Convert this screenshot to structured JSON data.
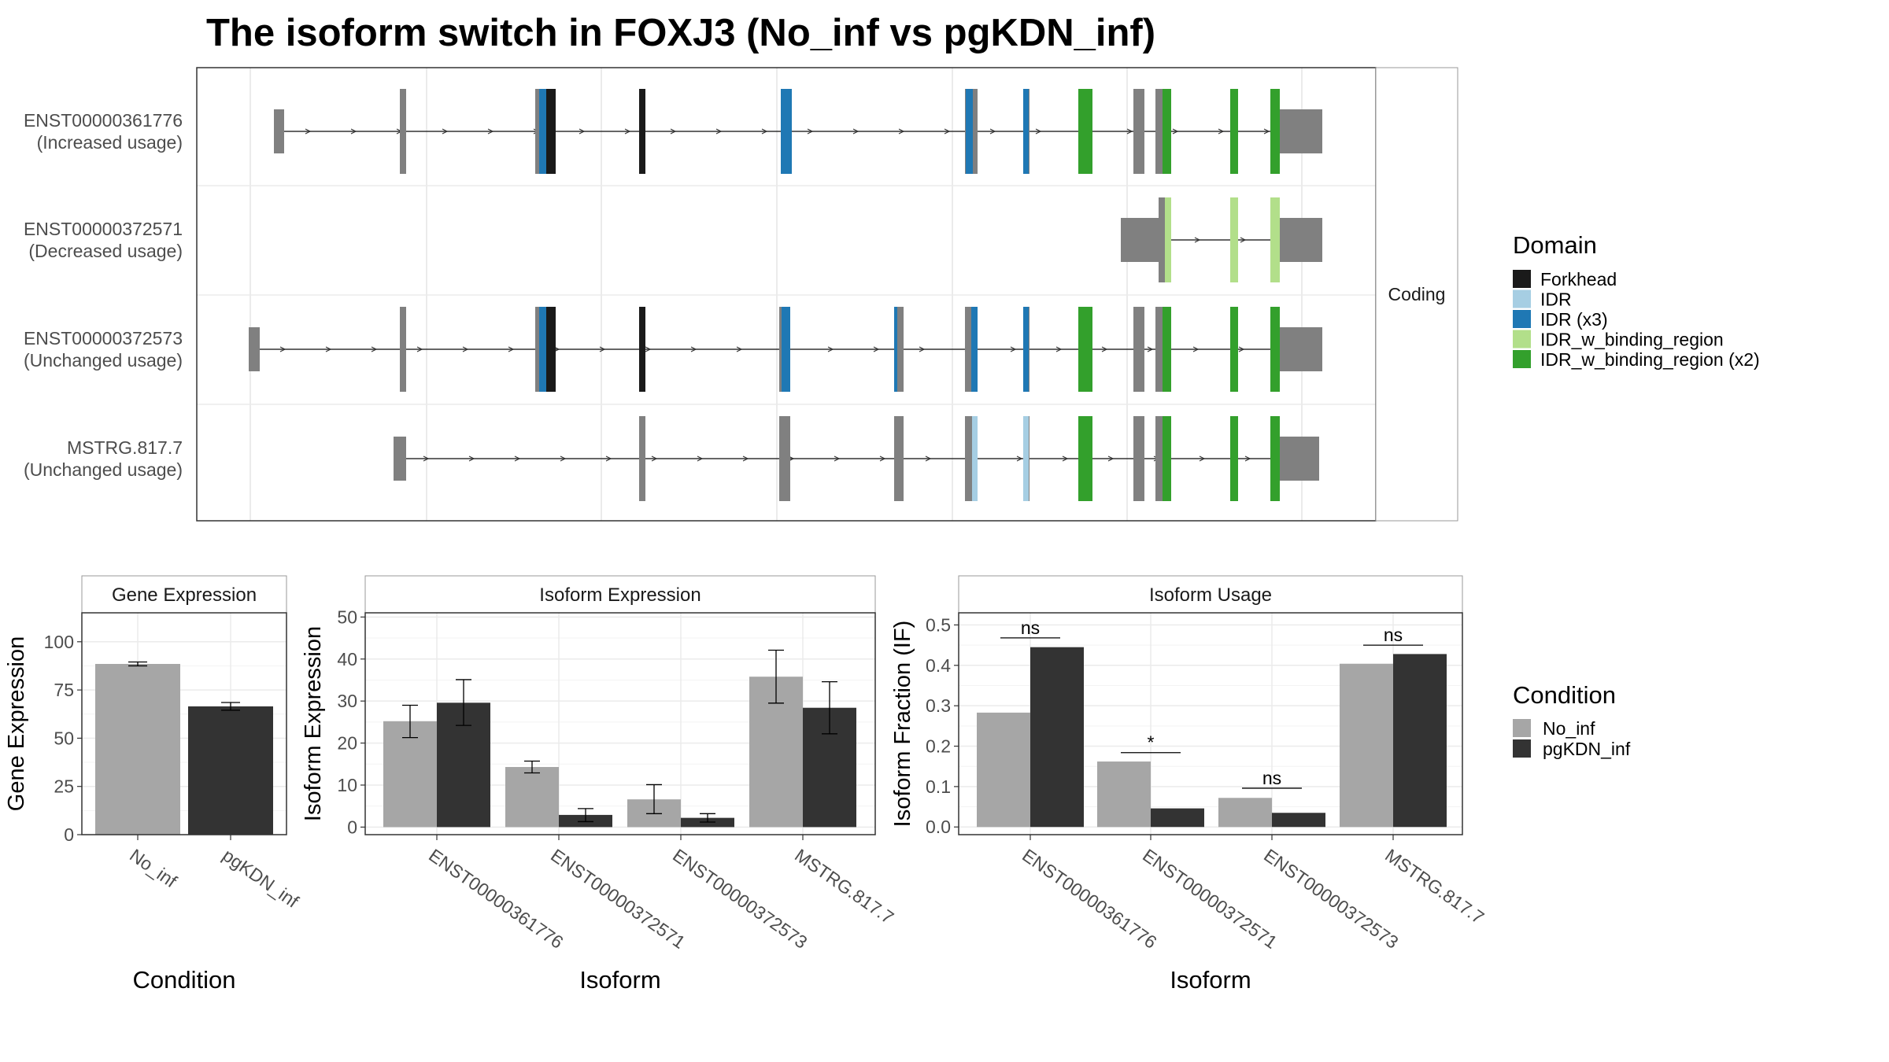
{
  "title": "The isoform switch in FOXJ3 (No_inf vs pgKDN_inf)",
  "colors": {
    "exon": "#808080",
    "intron": "#333333",
    "no_inf": "#a6a6a6",
    "pgkdn_inf": "#333333",
    "grid": "#ebebeb",
    "panel_border": "#333333",
    "strip_border": "#999999",
    "Forkhead": "#1a1a1a",
    "IDR": "#a6cee3",
    "IDR (x3)": "#1f78b4",
    "IDR_w_binding_region": "#b2df8a",
    "IDR_w_binding_region (x2)": "#33a02c"
  },
  "structure": {
    "facet_label": "Coding",
    "isoforms": [
      {
        "id": "ENST00000361776",
        "usage": "(Increased usage)"
      },
      {
        "id": "ENST00000372571",
        "usage": "(Decreased usage)"
      },
      {
        "id": "ENST00000372573",
        "usage": "(Unchanged usage)"
      },
      {
        "id": "MSTRG.817.7",
        "usage": "(Unchanged usage)"
      }
    ],
    "legend": {
      "title": "Domain",
      "items": [
        "Forkhead",
        "IDR",
        "IDR (x3)",
        "IDR_w_binding_region",
        "IDR_w_binding_region (x2)"
      ]
    }
  },
  "condition_legend": {
    "title": "Condition",
    "items": [
      "No_inf",
      "pgKDN_inf"
    ]
  },
  "chart_data": [
    {
      "type": "bar",
      "title": "Gene Expression",
      "xlabel": "Condition",
      "ylabel": "Gene Expression",
      "categories": [
        "No_inf",
        "pgKDN_inf"
      ],
      "values": [
        88.5,
        66.5
      ],
      "errors": [
        [
          87.5,
          89.5
        ],
        [
          64.5,
          68.5
        ]
      ],
      "ylim": [
        0,
        115
      ],
      "yticks": [
        0,
        25,
        50,
        75,
        100
      ]
    },
    {
      "type": "bar",
      "title": "Isoform Expression",
      "xlabel": "Isoform",
      "ylabel": "Isoform Expression",
      "categories": [
        "ENST00000361776",
        "ENST00000372571",
        "ENST00000372573",
        "MSTRG.817.7"
      ],
      "series": [
        {
          "name": "No_inf",
          "values": [
            25.2,
            14.3,
            6.6,
            35.8
          ],
          "errors": [
            [
              21.3,
              29.0
            ],
            [
              12.9,
              15.7
            ],
            [
              3.2,
              10.1
            ],
            [
              29.5,
              42.1
            ]
          ]
        },
        {
          "name": "pgKDN_inf",
          "values": [
            29.6,
            2.9,
            2.2,
            28.4
          ],
          "errors": [
            [
              24.2,
              35.1
            ],
            [
              1.3,
              4.4
            ],
            [
              1.2,
              3.2
            ],
            [
              22.2,
              34.6
            ]
          ]
        }
      ],
      "ylim": [
        -1.8,
        51
      ],
      "yticks": [
        0,
        10,
        20,
        30,
        40,
        50
      ]
    },
    {
      "type": "bar",
      "title": "Isoform Usage",
      "xlabel": "Isoform",
      "ylabel": "Isoform Fraction (IF)",
      "categories": [
        "ENST00000361776",
        "ENST00000372571",
        "ENST00000372573",
        "MSTRG.817.7"
      ],
      "series": [
        {
          "name": "No_inf",
          "values": [
            0.283,
            0.162,
            0.072,
            0.404
          ]
        },
        {
          "name": "pgKDN_inf",
          "values": [
            0.445,
            0.046,
            0.035,
            0.428
          ]
        }
      ],
      "significance": [
        {
          "label": "ns",
          "y": 0.468
        },
        {
          "label": "*",
          "y": 0.184
        },
        {
          "label": "ns",
          "y": 0.096
        },
        {
          "label": "ns",
          "y": 0.45
        }
      ],
      "ylim": [
        -0.019,
        0.53
      ],
      "yticks": [
        0.0,
        0.1,
        0.2,
        0.3,
        0.4,
        0.5
      ],
      "ytick_labels": [
        "0.0",
        "0.1",
        "0.2",
        "0.3",
        "0.4",
        "0.5"
      ]
    }
  ]
}
